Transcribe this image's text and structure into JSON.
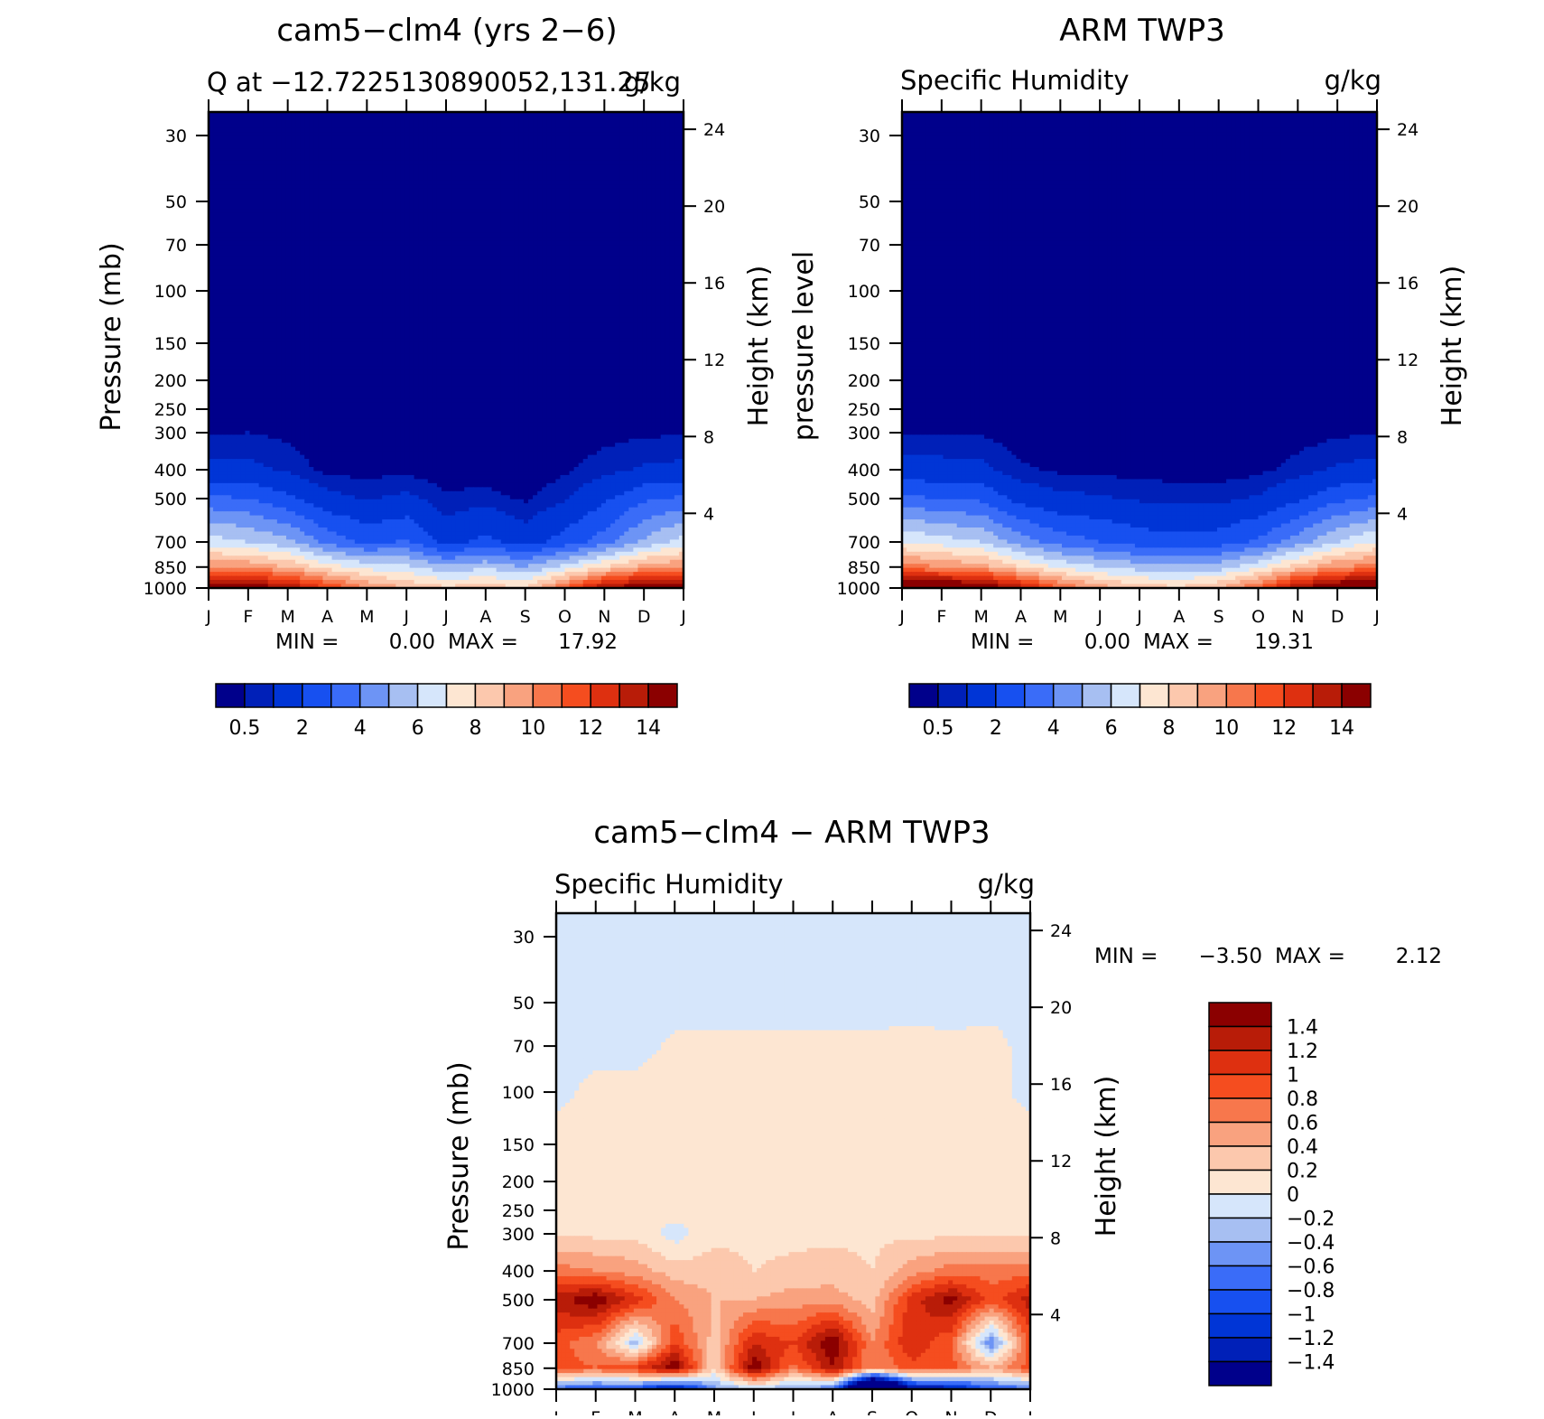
{
  "months": [
    "J",
    "F",
    "M",
    "A",
    "M",
    "J",
    "J",
    "A",
    "S",
    "O",
    "N",
    "D",
    "J"
  ],
  "pressure_ticks": [
    "30",
    "50",
    "70",
    "100",
    "150",
    "200",
    "250",
    "300",
    "400",
    "500",
    "700",
    "850",
    "1000"
  ],
  "height_ticks": [
    "24",
    "20",
    "16",
    "12",
    "8",
    "4"
  ],
  "panels": [
    {
      "title": "cam5−clm4 (yrs 2−6)",
      "subtitle_left": "Q at −12.7225130890052,131.25",
      "subtitle_right": "g/kg",
      "ylabel_left": "Pressure (mb)",
      "ylabel_right": "Height (km)",
      "min_label": "MIN =",
      "min_value": "0.00",
      "max_label": "MAX =",
      "max_value": "17.92",
      "colorbar_labels": [
        "0.5",
        "2",
        "4",
        "6",
        "8",
        "10",
        "12",
        "14"
      ]
    },
    {
      "title": "ARM TWP3",
      "subtitle_left": "Specific Humidity",
      "subtitle_right": "g/kg",
      "ylabel_left": "pressure level",
      "ylabel_right": "Height (km)",
      "min_label": "MIN =",
      "min_value": "0.00",
      "max_label": "MAX =",
      "max_value": "19.31",
      "colorbar_labels": [
        "0.5",
        "2",
        "4",
        "6",
        "8",
        "10",
        "12",
        "14"
      ]
    },
    {
      "title": "cam5−clm4 − ARM TWP3",
      "subtitle_left": "Specific Humidity",
      "subtitle_right": "g/kg",
      "ylabel_left": "Pressure (mb)",
      "ylabel_right": "Height (km)",
      "min_label": "MIN =",
      "min_value": "−3.50",
      "max_label": "MAX =",
      "max_value": "2.12",
      "colorbar_labels": [
        "1.4",
        "1.2",
        "1",
        "0.8",
        "0.6",
        "0.4",
        "0.2",
        "0",
        "−0.2",
        "−0.4",
        "−0.6",
        "−0.8",
        "−1",
        "−1.2",
        "−1.4"
      ]
    }
  ],
  "chart_data": [
    {
      "type": "heatmap",
      "title": "cam5−clm4 (yrs 2−6)",
      "subtitle": "Q at −12.7225130890052,131.25",
      "units": "g/kg",
      "xlabel": "",
      "ylabel": "Pressure (mb)",
      "ylabel_right": "Height (km)",
      "x_categories": [
        "J",
        "F",
        "M",
        "A",
        "M",
        "J",
        "J",
        "A",
        "S",
        "O",
        "N",
        "D",
        "J"
      ],
      "y_levels": [
        1000,
        850,
        700,
        500,
        400,
        300,
        250,
        200,
        150,
        100,
        70,
        50,
        30
      ],
      "y_log_scale": true,
      "contour_levels": [
        0.5,
        1,
        2,
        3,
        4,
        5,
        6,
        7,
        8,
        9,
        10,
        11,
        12,
        13,
        14
      ],
      "min": 0.0,
      "max": 17.92,
      "values": [
        [
          15.5,
          15.0,
          14.0,
          12.0,
          10.0,
          9.0,
          8.2,
          8.5,
          8.0,
          11.0,
          14.0,
          15.2,
          15.5
        ],
        [
          10.0,
          9.8,
          9.0,
          7.5,
          6.6,
          6.3,
          5.2,
          5.8,
          5.0,
          6.4,
          8.0,
          9.5,
          10.0
        ],
        [
          6.5,
          6.0,
          5.3,
          3.6,
          2.8,
          3.1,
          1.6,
          2.3,
          1.5,
          2.4,
          3.5,
          5.2,
          6.5
        ],
        [
          3.2,
          3.0,
          2.2,
          1.3,
          0.9,
          1.2,
          0.6,
          0.7,
          0.4,
          0.9,
          1.8,
          2.8,
          3.2
        ],
        [
          1.2,
          1.2,
          0.9,
          0.3,
          0.3,
          0.35,
          0.18,
          0.2,
          0.12,
          0.4,
          0.8,
          1.1,
          1.2
        ],
        [
          0.45,
          0.5,
          0.35,
          0.1,
          0.1,
          0.1,
          0.05,
          0.05,
          0.05,
          0.1,
          0.3,
          0.4,
          0.45
        ],
        [
          0.15,
          0.15,
          0.1,
          0.05,
          0.05,
          0.05,
          0.02,
          0.02,
          0.02,
          0.05,
          0.1,
          0.15,
          0.15
        ],
        [
          0.05,
          0.05,
          0.03,
          0.02,
          0.02,
          0.02,
          0.01,
          0.01,
          0.01,
          0.02,
          0.03,
          0.05,
          0.05
        ],
        [
          0.02,
          0.02,
          0.02,
          0.01,
          0.01,
          0.01,
          0.01,
          0.01,
          0.01,
          0.01,
          0.02,
          0.02,
          0.02
        ],
        [
          0.01,
          0.01,
          0.01,
          0.01,
          0.01,
          0.01,
          0.01,
          0.01,
          0.01,
          0.01,
          0.01,
          0.01,
          0.01
        ],
        [
          0.0,
          0.0,
          0.0,
          0.0,
          0.0,
          0.0,
          0.0,
          0.0,
          0.0,
          0.0,
          0.0,
          0.0,
          0.0
        ],
        [
          0.0,
          0.0,
          0.0,
          0.0,
          0.0,
          0.0,
          0.0,
          0.0,
          0.0,
          0.0,
          0.0,
          0.0,
          0.0
        ],
        [
          0.0,
          0.0,
          0.0,
          0.0,
          0.0,
          0.0,
          0.0,
          0.0,
          0.0,
          0.0,
          0.0,
          0.0,
          0.0
        ]
      ],
      "colors": [
        "#00008b",
        "#0020b8",
        "#0035d6",
        "#1750f0",
        "#3a6cf8",
        "#6d94f5",
        "#a7bff2",
        "#d6e6fb",
        "#fde6d2",
        "#fcc8ad",
        "#f9a27f",
        "#f7774c",
        "#f54d1f",
        "#de3010",
        "#b81c08",
        "#8b0000"
      ]
    },
    {
      "type": "heatmap",
      "title": "ARM TWP3",
      "subtitle": "Specific Humidity",
      "units": "g/kg",
      "xlabel": "",
      "ylabel": "pressure level",
      "ylabel_right": "Height (km)",
      "x_categories": [
        "J",
        "F",
        "M",
        "A",
        "M",
        "J",
        "J",
        "A",
        "S",
        "O",
        "N",
        "D",
        "J"
      ],
      "y_levels": [
        1000,
        850,
        700,
        500,
        400,
        300,
        250,
        200,
        150,
        100,
        70,
        50,
        30
      ],
      "y_log_scale": true,
      "contour_levels": [
        0.5,
        1,
        2,
        3,
        4,
        5,
        6,
        7,
        8,
        9,
        10,
        11,
        12,
        13,
        14
      ],
      "min": 0.0,
      "max": 19.31,
      "values": [
        [
          16.5,
          16.0,
          15.5,
          13.5,
          11.0,
          9.5,
          8.5,
          8.2,
          9.0,
          11.0,
          14.0,
          15.5,
          16.5
        ],
        [
          10.5,
          10.0,
          9.5,
          8.0,
          6.8,
          6.0,
          5.5,
          5.2,
          5.5,
          6.8,
          8.5,
          10.0,
          10.5
        ],
        [
          7.0,
          6.5,
          6.0,
          4.5,
          3.5,
          3.0,
          2.5,
          2.3,
          2.5,
          3.2,
          4.5,
          6.0,
          7.0
        ],
        [
          3.2,
          3.0,
          2.8,
          1.6,
          1.2,
          1.1,
          0.9,
          0.8,
          0.8,
          1.1,
          1.8,
          2.7,
          3.2
        ],
        [
          1.3,
          1.3,
          1.2,
          0.6,
          0.4,
          0.35,
          0.3,
          0.25,
          0.25,
          0.35,
          0.7,
          1.1,
          1.3
        ],
        [
          0.45,
          0.45,
          0.45,
          0.2,
          0.1,
          0.1,
          0.08,
          0.05,
          0.05,
          0.1,
          0.25,
          0.4,
          0.45
        ],
        [
          0.15,
          0.15,
          0.15,
          0.05,
          0.03,
          0.03,
          0.02,
          0.02,
          0.02,
          0.03,
          0.08,
          0.12,
          0.15
        ],
        [
          0.05,
          0.05,
          0.05,
          0.02,
          0.01,
          0.01,
          0.01,
          0.01,
          0.01,
          0.01,
          0.03,
          0.04,
          0.05
        ],
        [
          0.02,
          0.02,
          0.02,
          0.01,
          0.01,
          0.01,
          0.01,
          0.01,
          0.01,
          0.01,
          0.01,
          0.02,
          0.02
        ],
        [
          0.01,
          0.01,
          0.01,
          0.01,
          0.01,
          0.01,
          0.01,
          0.01,
          0.01,
          0.01,
          0.01,
          0.01,
          0.01
        ],
        [
          0.0,
          0.0,
          0.0,
          0.0,
          0.0,
          0.0,
          0.0,
          0.0,
          0.0,
          0.0,
          0.0,
          0.0,
          0.0
        ],
        [
          0.0,
          0.0,
          0.0,
          0.0,
          0.0,
          0.0,
          0.0,
          0.0,
          0.0,
          0.0,
          0.0,
          0.0,
          0.0
        ],
        [
          0.0,
          0.0,
          0.0,
          0.0,
          0.0,
          0.0,
          0.0,
          0.0,
          0.0,
          0.0,
          0.0,
          0.0,
          0.0
        ]
      ],
      "colors": [
        "#00008b",
        "#0020b8",
        "#0035d6",
        "#1750f0",
        "#3a6cf8",
        "#6d94f5",
        "#a7bff2",
        "#d6e6fb",
        "#fde6d2",
        "#fcc8ad",
        "#f9a27f",
        "#f7774c",
        "#f54d1f",
        "#de3010",
        "#b81c08",
        "#8b0000"
      ]
    },
    {
      "type": "heatmap",
      "title": "cam5−clm4 − ARM TWP3",
      "subtitle": "Specific Humidity",
      "units": "g/kg",
      "xlabel": "",
      "ylabel": "Pressure (mb)",
      "ylabel_right": "Height (km)",
      "x_categories": [
        "J",
        "F",
        "M",
        "A",
        "M",
        "J",
        "J",
        "A",
        "S",
        "O",
        "N",
        "D",
        "J"
      ],
      "y_levels": [
        1000,
        850,
        700,
        500,
        400,
        300,
        250,
        200,
        150,
        100,
        70,
        50,
        30
      ],
      "y_log_scale": true,
      "contour_levels": [
        -1.4,
        -1.2,
        -1.0,
        -0.8,
        -0.6,
        -0.4,
        -0.2,
        0,
        0.2,
        0.4,
        0.6,
        0.8,
        1.0,
        1.2,
        1.4
      ],
      "min": -3.5,
      "max": 2.12,
      "values": [
        [
          -0.7,
          -0.9,
          -0.9,
          -1.5,
          -0.5,
          -0.2,
          -0.5,
          -0.6,
          -3.5,
          -1.5,
          -1.4,
          -0.8,
          -0.7
        ],
        [
          0.9,
          0.8,
          1.0,
          1.6,
          0.2,
          1.6,
          0.7,
          1.4,
          0.6,
          0.9,
          0.9,
          0.4,
          0.9
        ],
        [
          0.9,
          0.6,
          -0.3,
          1.0,
          0.3,
          1.2,
          1.0,
          1.6,
          0.6,
          1.2,
          0.8,
          -0.6,
          0.9
        ],
        [
          1.3,
          1.6,
          1.1,
          0.6,
          0.4,
          0.4,
          0.5,
          0.5,
          0.3,
          1.1,
          1.5,
          0.9,
          1.3
        ],
        [
          0.7,
          0.6,
          0.5,
          0.3,
          0.3,
          0.2,
          0.25,
          0.3,
          0.2,
          0.5,
          0.7,
          0.7,
          0.7
        ],
        [
          0.15,
          0.15,
          0.15,
          -0.1,
          0.15,
          0.15,
          0.15,
          0.15,
          0.15,
          0.15,
          0.15,
          0.15,
          0.15
        ],
        [
          0.1,
          0.1,
          0.1,
          0.1,
          0.1,
          0.1,
          0.1,
          0.1,
          0.1,
          0.1,
          0.1,
          0.1,
          0.1
        ],
        [
          0.05,
          0.05,
          0.05,
          0.05,
          0.05,
          0.05,
          0.05,
          0.05,
          0.05,
          0.05,
          0.05,
          0.05,
          0.05
        ],
        [
          0.03,
          0.03,
          0.03,
          0.03,
          0.03,
          0.03,
          0.03,
          0.03,
          0.03,
          0.03,
          0.03,
          0.03,
          0.03
        ],
        [
          -0.02,
          0.02,
          0.02,
          0.02,
          0.02,
          0.02,
          0.02,
          0.02,
          0.02,
          0.02,
          0.02,
          0.02,
          -0.02
        ],
        [
          -0.02,
          -0.02,
          -0.02,
          0.01,
          0.01,
          0.01,
          0.01,
          0.01,
          0.01,
          0.02,
          0.01,
          0.02,
          -0.02
        ],
        [
          -0.02,
          -0.02,
          -0.02,
          -0.02,
          -0.02,
          -0.02,
          -0.02,
          -0.02,
          -0.02,
          -0.02,
          -0.02,
          -0.02,
          -0.02
        ],
        [
          -0.02,
          -0.02,
          -0.02,
          -0.02,
          -0.02,
          -0.02,
          -0.02,
          -0.02,
          -0.02,
          -0.02,
          -0.02,
          -0.02,
          -0.02
        ]
      ],
      "colors": [
        "#00008b",
        "#0020b8",
        "#0035d6",
        "#1750f0",
        "#3a6cf8",
        "#6d94f5",
        "#a7bff2",
        "#d6e6fb",
        "#fde6d2",
        "#fcc8ad",
        "#f9a27f",
        "#f7774c",
        "#f54d1f",
        "#de3010",
        "#b81c08",
        "#8b0000"
      ]
    }
  ]
}
